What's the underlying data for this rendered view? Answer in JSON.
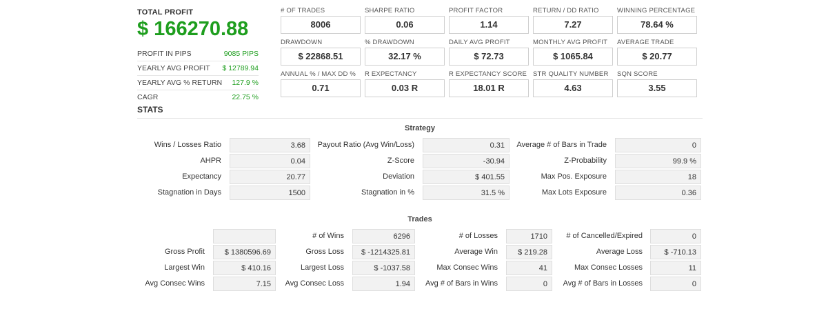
{
  "summary": {
    "total_profit_label": "TOTAL PROFIT",
    "total_profit_value": "$ 166270.88",
    "rows": [
      {
        "label": "PROFIT IN PIPS",
        "value": "9085 PIPS"
      },
      {
        "label": "YEARLY AVG PROFIT",
        "value": "$ 12789.94"
      },
      {
        "label": "YEARLY AVG % RETURN",
        "value": "127.9 %"
      },
      {
        "label": "CAGR",
        "value": "22.75 %"
      }
    ]
  },
  "metrics": [
    [
      {
        "label": "# OF TRADES",
        "value": "8006"
      },
      {
        "label": "SHARPE RATIO",
        "value": "0.06"
      },
      {
        "label": "PROFIT FACTOR",
        "value": "1.14"
      },
      {
        "label": "RETURN / DD RATIO",
        "value": "7.27"
      },
      {
        "label": "WINNING PERCENTAGE",
        "value": "78.64 %"
      }
    ],
    [
      {
        "label": "DRAWDOWN",
        "value": "$ 22868.51"
      },
      {
        "label": "% DRAWDOWN",
        "value": "32.17 %"
      },
      {
        "label": "DAILY AVG PROFIT",
        "value": "$ 72.73"
      },
      {
        "label": "MONTHLY AVG PROFIT",
        "value": "$ 1065.84"
      },
      {
        "label": "AVERAGE TRADE",
        "value": "$ 20.77"
      }
    ],
    [
      {
        "label": "ANNUAL % / MAX DD %",
        "value": "0.71"
      },
      {
        "label": "R EXPECTANCY",
        "value": "0.03 R"
      },
      {
        "label": "R EXPECTANCY SCORE",
        "value": "18.01 R"
      },
      {
        "label": "STR QUALITY NUMBER",
        "value": "4.63"
      },
      {
        "label": "SQN SCORE",
        "value": "3.55"
      }
    ]
  ],
  "stats_title": "STATS",
  "strategy": {
    "title": "Strategy",
    "rows": [
      [
        {
          "label": "Wins / Losses Ratio",
          "value": "3.68"
        },
        {
          "label": "Payout Ratio (Avg Win/Loss)",
          "value": "0.31"
        },
        {
          "label": "Average # of Bars in Trade",
          "value": "0"
        }
      ],
      [
        {
          "label": "AHPR",
          "value": "0.04"
        },
        {
          "label": "Z-Score",
          "value": "-30.94"
        },
        {
          "label": "Z-Probability",
          "value": "99.9 %"
        }
      ],
      [
        {
          "label": "Expectancy",
          "value": "20.77"
        },
        {
          "label": "Deviation",
          "value": "$ 401.55"
        },
        {
          "label": "Max Pos. Exposure",
          "value": "18"
        }
      ],
      [
        {
          "label": "Stagnation in Days",
          "value": "1500"
        },
        {
          "label": "Stagnation in %",
          "value": "31.5 %"
        },
        {
          "label": "Max Lots Exposure",
          "value": "0.36"
        }
      ]
    ]
  },
  "trades": {
    "title": "Trades",
    "rows": [
      [
        {
          "label": "",
          "value": ""
        },
        {
          "label": "# of Wins",
          "value": "6296"
        },
        {
          "label": "# of Losses",
          "value": "1710"
        },
        {
          "label": "# of Cancelled/Expired",
          "value": "0"
        }
      ],
      [
        {
          "label": "Gross Profit",
          "value": "$ 1380596.69"
        },
        {
          "label": "Gross Loss",
          "value": "$ -1214325.81"
        },
        {
          "label": "Average Win",
          "value": "$ 219.28"
        },
        {
          "label": "Average Loss",
          "value": "$ -710.13"
        }
      ],
      [
        {
          "label": "Largest Win",
          "value": "$ 410.16"
        },
        {
          "label": "Largest Loss",
          "value": "$ -1037.58"
        },
        {
          "label": "Max Consec Wins",
          "value": "41"
        },
        {
          "label": "Max Consec Losses",
          "value": "11"
        }
      ],
      [
        {
          "label": "Avg Consec Wins",
          "value": "7.15"
        },
        {
          "label": "Avg Consec Loss",
          "value": "1.94"
        },
        {
          "label": "Avg # of Bars in Wins",
          "value": "0"
        },
        {
          "label": "Avg # of Bars in Losses",
          "value": "0"
        }
      ]
    ]
  }
}
